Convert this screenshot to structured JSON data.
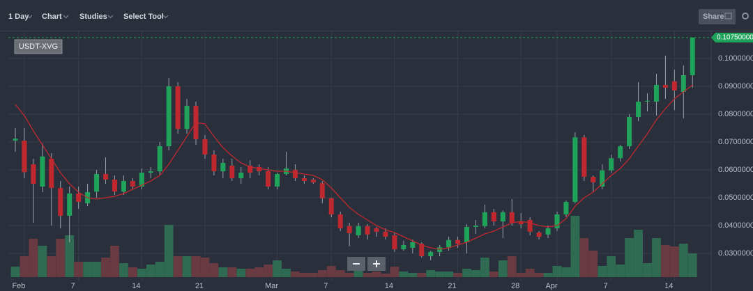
{
  "toolbar": {
    "interval": "1 Day",
    "chart": "Chart",
    "studies": "Studies",
    "select_tool": "Select Tool",
    "share": "Share"
  },
  "chart_data": {
    "type": "candlestick",
    "symbol": "USDT-XVG",
    "categories": [
      null,
      "Feb",
      null,
      null,
      null,
      null,
      null,
      "7",
      null,
      null,
      null,
      null,
      null,
      null,
      "14",
      null,
      null,
      null,
      null,
      null,
      null,
      "21",
      null,
      null,
      null,
      null,
      null,
      null,
      null,
      "Mar",
      null,
      null,
      null,
      null,
      null,
      "7",
      null,
      null,
      null,
      null,
      null,
      null,
      "14",
      null,
      null,
      null,
      null,
      null,
      null,
      "21",
      null,
      null,
      null,
      null,
      null,
      null,
      "28",
      null,
      null,
      null,
      "Apr",
      null,
      null,
      null,
      null,
      null,
      "7",
      null,
      null,
      null,
      null,
      null,
      null,
      "14",
      null,
      null
    ],
    "open": [
      0.0705,
      0.0705,
      0.062,
      0.054,
      0.064,
      0.0535,
      0.0435,
      0.0515,
      0.048,
      0.0522,
      0.0585,
      0.0565,
      0.0522,
      0.056,
      0.054,
      0.059,
      0.0595,
      0.0685,
      0.09,
      0.0747,
      0.083,
      0.071,
      0.0655,
      0.0595,
      0.0615,
      0.057,
      0.0615,
      0.061,
      0.0595,
      0.054,
      0.0585,
      0.06,
      0.057,
      0.0565,
      0.0552,
      0.0498,
      0.044,
      0.0398,
      0.0365,
      0.0398,
      0.039,
      0.0378,
      0.0365,
      0.0315,
      0.032,
      0.0335,
      0.029,
      0.0305,
      0.0322,
      0.0348,
      0.034,
      0.0395,
      0.0398,
      0.0448,
      0.0415,
      0.0448,
      0.0415,
      0.042,
      0.0375,
      0.0368,
      0.039,
      0.044,
      0.0485,
      0.0717,
      0.0575,
      0.054,
      0.0598,
      0.0642,
      0.0685,
      0.079,
      0.0845,
      0.0845,
      0.0905,
      0.0918,
      0.088,
      0.094
    ],
    "high": [
      0.075,
      0.075,
      0.064,
      0.0695,
      0.066,
      0.056,
      0.054,
      0.054,
      0.055,
      0.06,
      0.0645,
      0.058,
      0.058,
      0.057,
      0.0605,
      0.061,
      0.07,
      0.093,
      0.0915,
      0.0855,
      0.0845,
      0.0725,
      0.067,
      0.064,
      0.064,
      0.061,
      0.0635,
      0.062,
      0.061,
      0.059,
      0.0665,
      0.062,
      0.058,
      0.057,
      0.056,
      0.05,
      0.045,
      0.041,
      0.041,
      0.0405,
      0.0395,
      0.039,
      0.0375,
      0.0345,
      0.035,
      0.034,
      0.031,
      0.033,
      0.036,
      0.036,
      0.0405,
      0.042,
      0.0475,
      0.046,
      0.0455,
      0.0495,
      0.0445,
      0.043,
      0.038,
      0.04,
      0.045,
      0.049,
      0.0735,
      0.0725,
      0.058,
      0.062,
      0.0655,
      0.069,
      0.08,
      0.0915,
      0.0875,
      0.0945,
      0.101,
      0.096,
      0.0975,
      0.1075
    ],
    "low": [
      0.0665,
      0.057,
      0.041,
      0.052,
      0.04,
      0.039,
      0.034,
      0.046,
      0.047,
      0.05,
      0.055,
      0.051,
      0.051,
      0.053,
      0.053,
      0.057,
      0.058,
      0.067,
      0.073,
      0.073,
      0.069,
      0.064,
      0.058,
      0.057,
      0.056,
      0.055,
      0.057,
      0.058,
      0.053,
      0.053,
      0.058,
      0.056,
      0.055,
      0.055,
      0.048,
      0.043,
      0.038,
      0.0325,
      0.0355,
      0.035,
      0.036,
      0.035,
      0.0305,
      0.031,
      0.03,
      0.0285,
      0.0275,
      0.029,
      0.031,
      0.032,
      0.03,
      0.037,
      0.039,
      0.04,
      0.0355,
      0.04,
      0.039,
      0.0365,
      0.035,
      0.0355,
      0.038,
      0.043,
      0.048,
      0.056,
      0.052,
      0.053,
      0.059,
      0.063,
      0.0675,
      0.0775,
      0.081,
      0.0795,
      0.0855,
      0.0815,
      0.0785,
      0.0895
    ],
    "close": [
      0.0712,
      0.0592,
      0.055,
      0.0648,
      0.0535,
      0.0435,
      0.0515,
      0.0485,
      0.052,
      0.0585,
      0.0565,
      0.0522,
      0.056,
      0.054,
      0.059,
      0.0595,
      0.0685,
      0.09,
      0.0747,
      0.083,
      0.071,
      0.0655,
      0.0595,
      0.0625,
      0.057,
      0.059,
      0.059,
      0.0595,
      0.054,
      0.0585,
      0.0605,
      0.057,
      0.056,
      0.0555,
      0.0498,
      0.044,
      0.039,
      0.0373,
      0.0398,
      0.0368,
      0.0378,
      0.036,
      0.0315,
      0.033,
      0.034,
      0.029,
      0.0305,
      0.0322,
      0.0348,
      0.0335,
      0.0395,
      0.04,
      0.0448,
      0.0415,
      0.0448,
      0.041,
      0.0405,
      0.0378,
      0.036,
      0.039,
      0.044,
      0.0485,
      0.0717,
      0.0575,
      0.0555,
      0.0598,
      0.0642,
      0.0685,
      0.079,
      0.0845,
      0.0848,
      0.0905,
      0.0895,
      0.0885,
      0.094,
      0.1075
    ],
    "moving_average": {
      "color": "#c0282f",
      "values": [
        0.0835,
        0.0795,
        0.074,
        0.069,
        0.064,
        0.059,
        0.055,
        0.052,
        0.05,
        0.0495,
        0.05,
        0.0505,
        0.0515,
        0.053,
        0.0545,
        0.056,
        0.058,
        0.062,
        0.067,
        0.072,
        0.077,
        0.0765,
        0.072,
        0.068,
        0.065,
        0.0625,
        0.061,
        0.0605,
        0.06,
        0.0595,
        0.0595,
        0.059,
        0.0585,
        0.058,
        0.0565,
        0.0535,
        0.05,
        0.0465,
        0.044,
        0.042,
        0.04,
        0.0385,
        0.0375,
        0.036,
        0.0345,
        0.033,
        0.032,
        0.0315,
        0.032,
        0.033,
        0.034,
        0.0355,
        0.037,
        0.038,
        0.0395,
        0.041,
        0.0415,
        0.041,
        0.04,
        0.0395,
        0.04,
        0.0425,
        0.047,
        0.05,
        0.052,
        0.055,
        0.058,
        0.0605,
        0.064,
        0.0685,
        0.073,
        0.078,
        0.082,
        0.0855,
        0.088,
        0.0905
      ]
    },
    "volume": [
      15,
      30,
      55,
      45,
      30,
      55,
      60,
      22,
      22,
      22,
      28,
      45,
      20,
      14,
      12,
      18,
      22,
      75,
      30,
      30,
      30,
      28,
      20,
      14,
      14,
      12,
      12,
      14,
      18,
      24,
      12,
      8,
      6,
      6,
      10,
      16,
      10,
      6,
      12,
      6,
      8,
      5,
      15,
      8,
      6,
      6,
      10,
      8,
      8,
      6,
      12,
      10,
      28,
      8,
      24,
      30,
      6,
      12,
      6,
      6,
      16,
      14,
      88,
      56,
      38,
      16,
      30,
      18,
      56,
      68,
      20,
      56,
      46,
      44,
      48,
      34
    ],
    "up_color": "#1fa35a",
    "down_color": "#c0282f",
    "up_volume_color": "#2f6a52",
    "down_volume_color": "#6a3a42",
    "ylim": [
      0.02,
      0.11
    ],
    "yticks": [
      {
        "value": 0.03,
        "label": "0.03000000"
      },
      {
        "value": 0.04,
        "label": "0.04000000"
      },
      {
        "value": 0.05,
        "label": "0.05000000"
      },
      {
        "value": 0.06,
        "label": "0.06000000"
      },
      {
        "value": 0.07,
        "label": "0.07000000"
      },
      {
        "value": 0.08,
        "label": "0.08000000"
      },
      {
        "value": 0.09,
        "label": "0.09000000"
      },
      {
        "value": 0.1,
        "label": "0.10000000"
      }
    ],
    "last_price": {
      "value": 0.1075,
      "label": "0.10750000"
    },
    "grid": true
  }
}
